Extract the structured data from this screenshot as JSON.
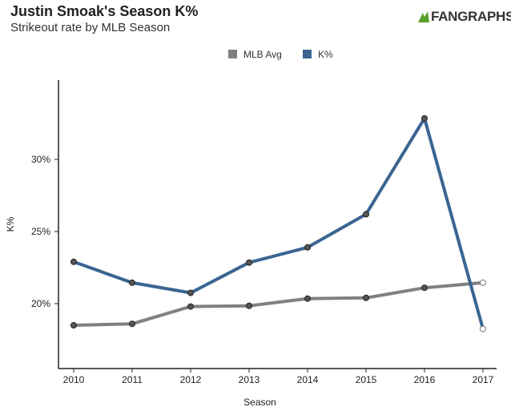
{
  "header": {
    "title": "Justin Smoak's Season K%",
    "subtitle": "Strikeout rate by MLB Season",
    "logo_text": "FANGRAPHS"
  },
  "colors": {
    "mlb_avg": "#808080",
    "k_pct": "#3a6591",
    "axis": "#222222",
    "grid": "#eeeeee"
  },
  "chart_data": {
    "type": "line",
    "title": "Justin Smoak's Season K%",
    "subtitle": "Strikeout rate by MLB Season",
    "xlabel": "Season",
    "ylabel": "K%",
    "categories": [
      "2010",
      "2011",
      "2012",
      "2013",
      "2014",
      "2015",
      "2016",
      "2017"
    ],
    "ylim": [
      15.5,
      35.5
    ],
    "yticks": [
      20,
      25,
      30
    ],
    "ytick_labels": [
      "20%",
      "25%",
      "30%"
    ],
    "grid": false,
    "legend_position": "top-center",
    "series": [
      {
        "name": "MLB Avg",
        "color": "#808080",
        "values": [
          18.5,
          18.6,
          19.8,
          19.85,
          20.35,
          20.4,
          21.1,
          21.45
        ],
        "hollow_last": true
      },
      {
        "name": "K%",
        "color": "#3a6591",
        "values": [
          22.9,
          21.45,
          20.75,
          22.85,
          23.9,
          26.2,
          32.85,
          18.25
        ],
        "hollow_last": true
      }
    ]
  }
}
